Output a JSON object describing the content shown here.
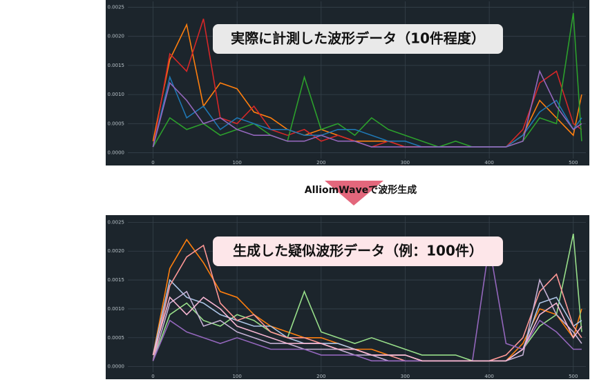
{
  "arrow_label": "AlliomWaveで波形生成",
  "chart_data": [
    {
      "type": "line",
      "annotation": "実際に計測した波形データ（10件程度）",
      "x": [
        0,
        20,
        40,
        60,
        80,
        100,
        120,
        140,
        160,
        180,
        200,
        220,
        240,
        260,
        280,
        300,
        320,
        340,
        360,
        380,
        400,
        420,
        440,
        460,
        480,
        500,
        510
      ],
      "xlim": [
        -30,
        515
      ],
      "xticks": [
        0,
        100,
        200,
        300,
        400,
        500
      ],
      "ylim": [
        -0.0001,
        0.0026
      ],
      "yticks": [
        {
          "value": 0,
          "label": "0.0000"
        },
        {
          "value": 0.0005,
          "label": "0.0005"
        },
        {
          "value": 0.001,
          "label": "0.0010"
        },
        {
          "value": 0.0015,
          "label": "0.0015"
        },
        {
          "value": 0.002,
          "label": "0.0020"
        },
        {
          "value": 0.0025,
          "label": "0.0025"
        }
      ],
      "grid": true,
      "series": [
        {
          "color": "#ff7f0e",
          "values": [
            0.0002,
            0.0016,
            0.0022,
            0.0008,
            0.0012,
            0.0011,
            0.0007,
            0.0006,
            0.0004,
            0.0003,
            0.0004,
            0.0003,
            0.0002,
            0.0002,
            0.0002,
            0.0001,
            0.0001,
            0.0001,
            0.0001,
            0.0001,
            0.0001,
            0.0001,
            0.0003,
            0.0009,
            0.0006,
            0.0003,
            0.001
          ]
        },
        {
          "color": "#d62728",
          "values": [
            0.0001,
            0.0017,
            0.0014,
            0.0023,
            0.0006,
            0.0005,
            0.0008,
            0.0004,
            0.0003,
            0.0004,
            0.0002,
            0.0003,
            0.0002,
            0.0001,
            0.0002,
            0.0001,
            0.0001,
            0.0001,
            0.0001,
            0.0001,
            0.0001,
            0.0001,
            0.0004,
            0.0012,
            0.0014,
            0.0005,
            0.0004
          ]
        },
        {
          "color": "#2ca02c",
          "values": [
            0.0001,
            0.0006,
            0.0004,
            0.0005,
            0.0003,
            0.0004,
            0.0005,
            0.0003,
            0.0002,
            0.0013,
            0.0004,
            0.0005,
            0.0003,
            0.0006,
            0.0004,
            0.0003,
            0.0002,
            0.0001,
            0.0002,
            0.0001,
            0.0001,
            0.0001,
            0.0002,
            0.0006,
            0.0005,
            0.0024,
            0.0002
          ]
        },
        {
          "color": "#1f77b4",
          "values": [
            0.0001,
            0.0013,
            0.0006,
            0.0008,
            0.0004,
            0.0006,
            0.0005,
            0.0004,
            0.0004,
            0.0003,
            0.0003,
            0.0004,
            0.0004,
            0.0003,
            0.0002,
            0.0002,
            0.0001,
            0.0001,
            0.0001,
            0.0001,
            0.0001,
            0.0001,
            0.0003,
            0.0007,
            0.0009,
            0.0004,
            0.0006
          ]
        },
        {
          "color": "#9467bd",
          "values": [
            0.0001,
            0.0012,
            0.0009,
            0.0005,
            0.0006,
            0.0004,
            0.0003,
            0.0003,
            0.0002,
            0.0002,
            0.0003,
            0.0002,
            0.0002,
            0.0001,
            0.0001,
            0.0001,
            0.0001,
            0.0001,
            0.0001,
            0.0001,
            0.0001,
            0.0001,
            0.0002,
            0.0014,
            0.0008,
            0.0004,
            0.0005
          ]
        }
      ]
    },
    {
      "type": "line",
      "annotation": "生成した疑似波形データ（例：100件）",
      "x": [
        0,
        20,
        40,
        60,
        80,
        100,
        120,
        140,
        160,
        180,
        200,
        220,
        240,
        260,
        280,
        300,
        320,
        340,
        360,
        380,
        400,
        420,
        440,
        460,
        480,
        500,
        510
      ],
      "xlim": [
        -30,
        515
      ],
      "xticks": [
        0,
        100,
        200,
        300,
        400,
        500
      ],
      "ylim": [
        -0.0001,
        0.0026
      ],
      "yticks": [
        {
          "value": 0,
          "label": "0.0000"
        },
        {
          "value": 0.0005,
          "label": "0.0005"
        },
        {
          "value": 0.001,
          "label": "0.0010"
        },
        {
          "value": 0.0015,
          "label": "0.0015"
        },
        {
          "value": 0.002,
          "label": "0.0020"
        },
        {
          "value": 0.0025,
          "label": "0.0025"
        }
      ],
      "grid": true,
      "series": [
        {
          "color": "#ff7f0e",
          "values": [
            0.0002,
            0.0017,
            0.0022,
            0.0018,
            0.0013,
            0.0012,
            0.0009,
            0.0007,
            0.0006,
            0.0005,
            0.0005,
            0.0004,
            0.0003,
            0.0003,
            0.0002,
            0.0002,
            0.0001,
            0.0001,
            0.0001,
            0.0001,
            0.0001,
            0.0001,
            0.0004,
            0.001,
            0.0009,
            0.0005,
            0.001
          ]
        },
        {
          "color": "#98df8a",
          "values": [
            0.0001,
            0.0009,
            0.0011,
            0.0008,
            0.0007,
            0.0009,
            0.0008,
            0.0006,
            0.0005,
            0.0013,
            0.0006,
            0.0005,
            0.0004,
            0.0005,
            0.0004,
            0.0003,
            0.0002,
            0.0002,
            0.0002,
            0.0001,
            0.0001,
            0.0001,
            0.0003,
            0.0007,
            0.0009,
            0.0023,
            0.0006
          ]
        },
        {
          "color": "#aec7e8",
          "values": [
            0.0002,
            0.0015,
            0.0012,
            0.0011,
            0.0009,
            0.0008,
            0.0007,
            0.0007,
            0.0005,
            0.0004,
            0.0004,
            0.0004,
            0.0003,
            0.0002,
            0.0002,
            0.0002,
            0.0001,
            0.0001,
            0.0001,
            0.0001,
            0.0001,
            0.0001,
            0.0003,
            0.0011,
            0.0012,
            0.0007,
            0.0008
          ]
        },
        {
          "color": "#ff9896",
          "values": [
            0.0001,
            0.0014,
            0.0019,
            0.0021,
            0.0011,
            0.0008,
            0.0009,
            0.0006,
            0.0005,
            0.0005,
            0.0004,
            0.0003,
            0.0003,
            0.0002,
            0.0002,
            0.0001,
            0.0001,
            0.0001,
            0.0001,
            0.0001,
            0.0001,
            0.0002,
            0.0005,
            0.0013,
            0.0016,
            0.0007,
            0.0005
          ]
        },
        {
          "color": "#c5b0d5",
          "values": [
            0.0001,
            0.0011,
            0.0013,
            0.0007,
            0.0008,
            0.0006,
            0.0005,
            0.0004,
            0.0004,
            0.0003,
            0.0003,
            0.0003,
            0.0002,
            0.0002,
            0.0001,
            0.0001,
            0.0001,
            0.0001,
            0.0001,
            0.0001,
            0.0001,
            0.0001,
            0.0002,
            0.0015,
            0.0009,
            0.0006,
            0.0004
          ]
        },
        {
          "color": "#9467bd",
          "values": [
            0.0001,
            0.0008,
            0.0006,
            0.0005,
            0.0004,
            0.0005,
            0.0004,
            0.0003,
            0.0003,
            0.0003,
            0.0002,
            0.0002,
            0.0002,
            0.0001,
            0.0001,
            0.0001,
            0.0001,
            0.0001,
            0.0001,
            0.0001,
            0.0021,
            0.0004,
            0.0003,
            0.0008,
            0.0006,
            0.0003,
            0.0003
          ]
        },
        {
          "color": "#f7b6d2",
          "values": [
            0.0002,
            0.0012,
            0.0009,
            0.0012,
            0.001,
            0.0007,
            0.0006,
            0.0005,
            0.0004,
            0.0004,
            0.0004,
            0.0003,
            0.0003,
            0.0002,
            0.0002,
            0.0002,
            0.0001,
            0.0001,
            0.0001,
            0.0001,
            0.0001,
            0.0001,
            0.0003,
            0.0009,
            0.0011,
            0.0005,
            0.0007
          ]
        }
      ]
    }
  ]
}
